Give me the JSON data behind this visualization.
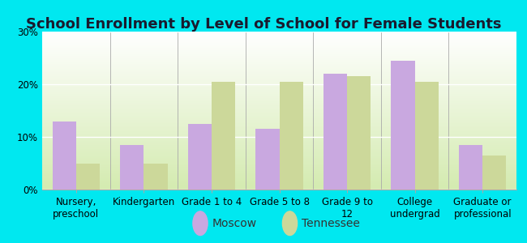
{
  "title": "School Enrollment by Level of School for Female Students",
  "categories": [
    "Nursery,\npreschool",
    "Kindergarten",
    "Grade 1 to 4",
    "Grade 5 to 8",
    "Grade 9 to\n12",
    "College\nundergrad",
    "Graduate or\nprofessional"
  ],
  "moscow_values": [
    13.0,
    8.5,
    12.5,
    11.5,
    22.0,
    24.5,
    8.5
  ],
  "tennessee_values": [
    5.0,
    5.0,
    20.5,
    20.5,
    21.5,
    20.5,
    6.5
  ],
  "moscow_color": "#c9a8e0",
  "tennessee_color": "#ccd89a",
  "background_outer": "#00e8f0",
  "ylim": [
    0,
    30
  ],
  "yticks": [
    0,
    10,
    20,
    30
  ],
  "ytick_labels": [
    "0%",
    "10%",
    "20%",
    "30%"
  ],
  "bar_width": 0.35,
  "legend_labels": [
    "Moscow",
    "Tennessee"
  ],
  "title_fontsize": 13,
  "axis_fontsize": 8.5,
  "legend_fontsize": 10
}
